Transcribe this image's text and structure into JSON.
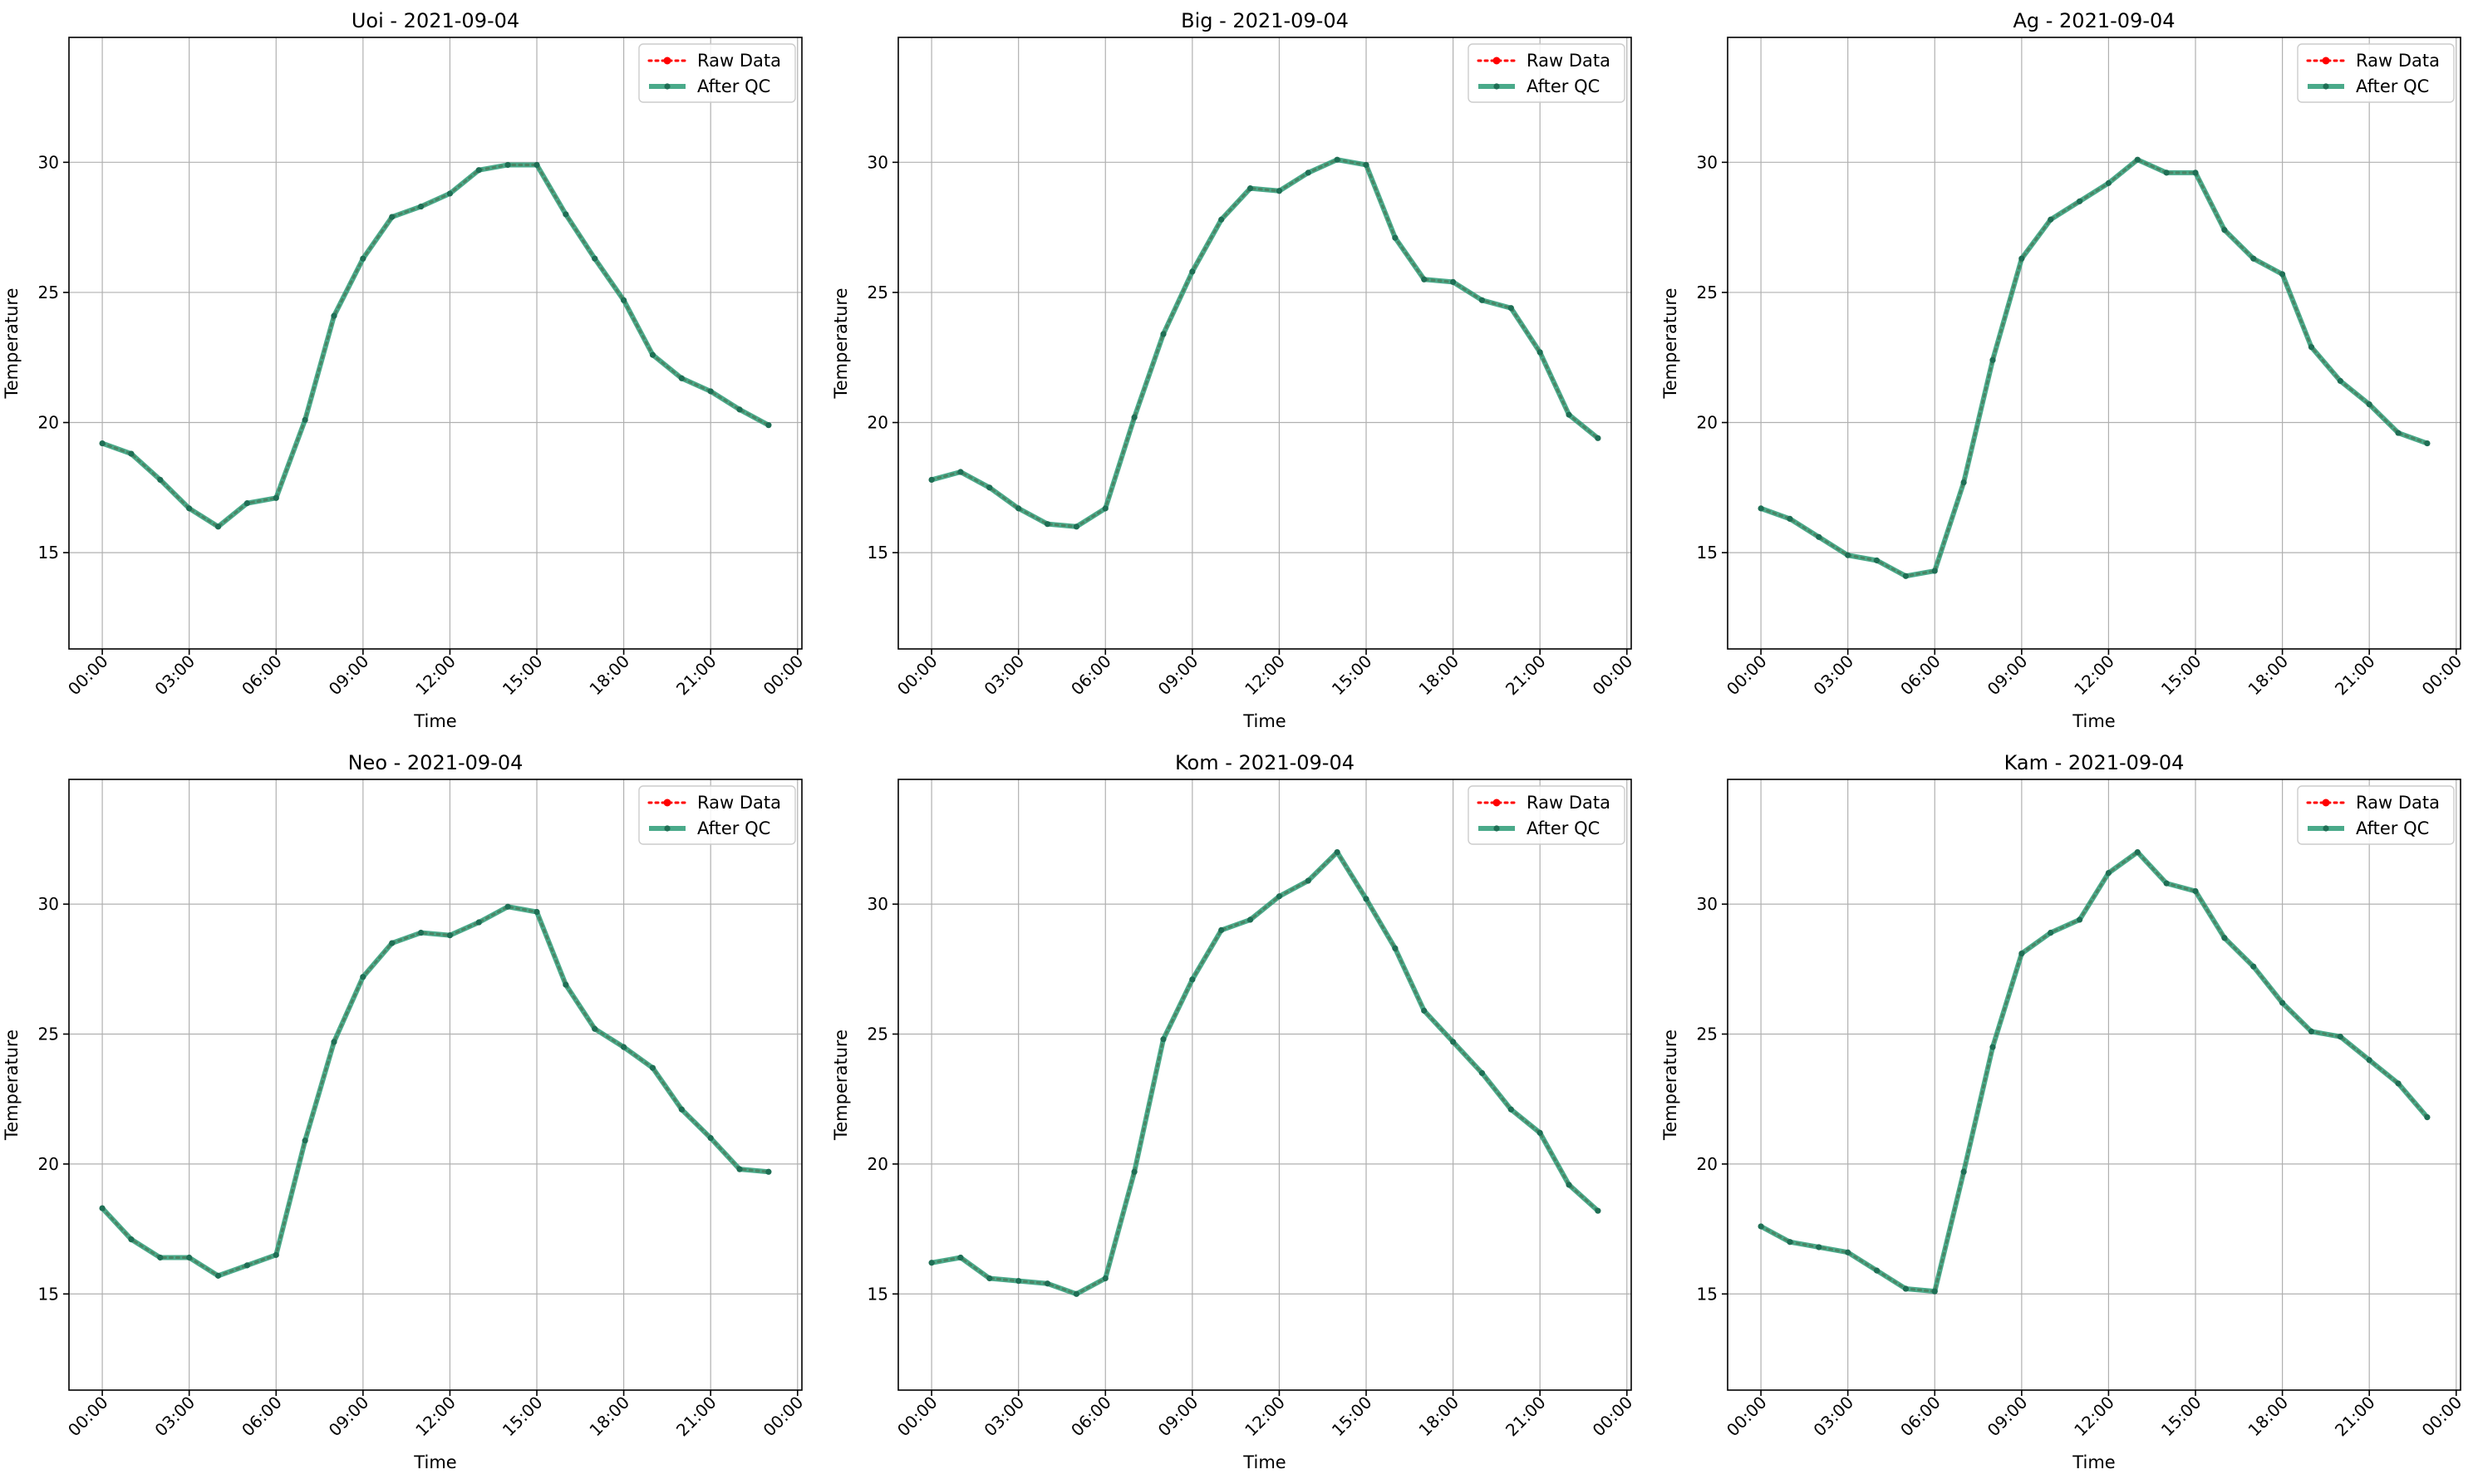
{
  "colors": {
    "raw": "#ff0000",
    "qc": "#2a9b75",
    "qc_marker": "#1f6f55",
    "grid": "#b0b0b0",
    "axes": "#000000"
  },
  "chart_data": [
    {
      "type": "line",
      "title": "Uoi - 2021-09-04",
      "xlabel": "Time",
      "ylabel": "Temperature",
      "x": [
        "00:00",
        "01:00",
        "02:00",
        "03:00",
        "04:00",
        "05:00",
        "06:00",
        "07:00",
        "08:00",
        "09:00",
        "10:00",
        "11:00",
        "12:00",
        "13:00",
        "14:00",
        "15:00",
        "16:00",
        "17:00",
        "18:00",
        "19:00",
        "20:00",
        "21:00",
        "22:00",
        "23:00"
      ],
      "xticks": [
        "00:00",
        "03:00",
        "06:00",
        "09:00",
        "12:00",
        "15:00",
        "18:00",
        "21:00",
        "00:00"
      ],
      "ylim": [
        11.3,
        34.8
      ],
      "yticks": [
        15,
        20,
        25,
        30
      ],
      "grid": true,
      "legend": "top-right",
      "series": [
        {
          "name": "Raw Data",
          "style": "dotted",
          "values": [
            19.2,
            18.8,
            17.8,
            16.7,
            16.0,
            16.9,
            17.1,
            20.1,
            24.1,
            26.3,
            27.9,
            28.3,
            28.8,
            29.7,
            29.9,
            29.9,
            28.0,
            26.3,
            24.7,
            22.6,
            21.7,
            21.2,
            20.5,
            19.9
          ]
        },
        {
          "name": "After QC",
          "style": "solid",
          "values": [
            19.2,
            18.8,
            17.8,
            16.7,
            16.0,
            16.9,
            17.1,
            20.1,
            24.1,
            26.3,
            27.9,
            28.3,
            28.8,
            29.7,
            29.9,
            29.9,
            28.0,
            26.3,
            24.7,
            22.6,
            21.7,
            21.2,
            20.5,
            19.9
          ]
        }
      ]
    },
    {
      "type": "line",
      "title": "Big - 2021-09-04",
      "xlabel": "Time",
      "ylabel": "Temperature",
      "x": [
        "00:00",
        "01:00",
        "02:00",
        "03:00",
        "04:00",
        "05:00",
        "06:00",
        "07:00",
        "08:00",
        "09:00",
        "10:00",
        "11:00",
        "12:00",
        "13:00",
        "14:00",
        "15:00",
        "16:00",
        "17:00",
        "18:00",
        "19:00",
        "20:00",
        "21:00",
        "22:00",
        "23:00"
      ],
      "xticks": [
        "00:00",
        "03:00",
        "06:00",
        "09:00",
        "12:00",
        "15:00",
        "18:00",
        "21:00",
        "00:00"
      ],
      "ylim": [
        11.3,
        34.8
      ],
      "yticks": [
        15,
        20,
        25,
        30
      ],
      "grid": true,
      "legend": "top-right",
      "series": [
        {
          "name": "Raw Data",
          "style": "dotted",
          "values": [
            17.8,
            18.1,
            17.5,
            16.7,
            16.1,
            16.0,
            16.7,
            20.2,
            23.4,
            25.8,
            27.8,
            29.0,
            28.9,
            29.6,
            30.1,
            29.9,
            27.1,
            25.5,
            25.4,
            24.7,
            24.4,
            22.7,
            20.3,
            19.4
          ]
        },
        {
          "name": "After QC",
          "style": "solid",
          "values": [
            17.8,
            18.1,
            17.5,
            16.7,
            16.1,
            16.0,
            16.7,
            20.2,
            23.4,
            25.8,
            27.8,
            29.0,
            28.9,
            29.6,
            30.1,
            29.9,
            27.1,
            25.5,
            25.4,
            24.7,
            24.4,
            22.7,
            20.3,
            19.4
          ]
        }
      ]
    },
    {
      "type": "line",
      "title": "Ag - 2021-09-04",
      "xlabel": "Time",
      "ylabel": "Temperature",
      "x": [
        "00:00",
        "01:00",
        "02:00",
        "03:00",
        "04:00",
        "05:00",
        "06:00",
        "07:00",
        "08:00",
        "09:00",
        "10:00",
        "11:00",
        "12:00",
        "13:00",
        "14:00",
        "15:00",
        "16:00",
        "17:00",
        "18:00",
        "19:00",
        "20:00",
        "21:00",
        "22:00",
        "23:00"
      ],
      "xticks": [
        "00:00",
        "03:00",
        "06:00",
        "09:00",
        "12:00",
        "15:00",
        "18:00",
        "21:00",
        "00:00"
      ],
      "ylim": [
        11.3,
        34.8
      ],
      "yticks": [
        15,
        20,
        25,
        30
      ],
      "grid": true,
      "legend": "top-right",
      "series": [
        {
          "name": "Raw Data",
          "style": "dotted",
          "values": [
            16.7,
            16.3,
            15.6,
            14.9,
            14.7,
            14.1,
            14.3,
            17.7,
            22.4,
            26.3,
            27.8,
            28.5,
            29.2,
            30.1,
            29.6,
            29.6,
            27.4,
            26.3,
            25.7,
            22.9,
            21.6,
            20.7,
            19.6,
            19.2
          ]
        },
        {
          "name": "After QC",
          "style": "solid",
          "values": [
            16.7,
            16.3,
            15.6,
            14.9,
            14.7,
            14.1,
            14.3,
            17.7,
            22.4,
            26.3,
            27.8,
            28.5,
            29.2,
            30.1,
            29.6,
            29.6,
            27.4,
            26.3,
            25.7,
            22.9,
            21.6,
            20.7,
            19.6,
            19.2
          ]
        }
      ]
    },
    {
      "type": "line",
      "title": "Neo - 2021-09-04",
      "xlabel": "Time",
      "ylabel": "Temperature",
      "x": [
        "00:00",
        "01:00",
        "02:00",
        "03:00",
        "04:00",
        "05:00",
        "06:00",
        "07:00",
        "08:00",
        "09:00",
        "10:00",
        "11:00",
        "12:00",
        "13:00",
        "14:00",
        "15:00",
        "16:00",
        "17:00",
        "18:00",
        "19:00",
        "20:00",
        "21:00",
        "22:00",
        "23:00"
      ],
      "xticks": [
        "00:00",
        "03:00",
        "06:00",
        "09:00",
        "12:00",
        "15:00",
        "18:00",
        "21:00",
        "00:00"
      ],
      "ylim": [
        11.3,
        34.8
      ],
      "yticks": [
        15,
        20,
        25,
        30
      ],
      "grid": true,
      "legend": "top-right",
      "series": [
        {
          "name": "Raw Data",
          "style": "dotted",
          "values": [
            18.3,
            17.1,
            16.4,
            16.4,
            15.7,
            16.1,
            16.5,
            20.9,
            24.7,
            27.2,
            28.5,
            28.9,
            28.8,
            29.3,
            29.9,
            29.7,
            26.9,
            25.2,
            24.5,
            23.7,
            22.1,
            21.0,
            19.8,
            19.7
          ]
        },
        {
          "name": "After QC",
          "style": "solid",
          "values": [
            18.3,
            17.1,
            16.4,
            16.4,
            15.7,
            16.1,
            16.5,
            20.9,
            24.7,
            27.2,
            28.5,
            28.9,
            28.8,
            29.3,
            29.9,
            29.7,
            26.9,
            25.2,
            24.5,
            23.7,
            22.1,
            21.0,
            19.8,
            19.7
          ]
        }
      ]
    },
    {
      "type": "line",
      "title": "Kom - 2021-09-04",
      "xlabel": "Time",
      "ylabel": "Temperature",
      "x": [
        "00:00",
        "01:00",
        "02:00",
        "03:00",
        "04:00",
        "05:00",
        "06:00",
        "07:00",
        "08:00",
        "09:00",
        "10:00",
        "11:00",
        "12:00",
        "13:00",
        "14:00",
        "15:00",
        "16:00",
        "17:00",
        "18:00",
        "19:00",
        "20:00",
        "21:00",
        "22:00",
        "23:00"
      ],
      "xticks": [
        "00:00",
        "03:00",
        "06:00",
        "09:00",
        "12:00",
        "15:00",
        "18:00",
        "21:00",
        "00:00"
      ],
      "ylim": [
        11.3,
        34.8
      ],
      "yticks": [
        15,
        20,
        25,
        30
      ],
      "grid": true,
      "legend": "top-right",
      "series": [
        {
          "name": "Raw Data",
          "style": "dotted",
          "values": [
            16.2,
            16.4,
            15.6,
            15.5,
            15.4,
            15.0,
            15.6,
            19.7,
            24.8,
            27.1,
            29.0,
            29.4,
            30.3,
            30.9,
            32.0,
            30.2,
            28.3,
            25.9,
            24.7,
            23.5,
            22.1,
            21.2,
            19.2,
            18.2
          ]
        },
        {
          "name": "After QC",
          "style": "solid",
          "values": [
            16.2,
            16.4,
            15.6,
            15.5,
            15.4,
            15.0,
            15.6,
            19.7,
            24.8,
            27.1,
            29.0,
            29.4,
            30.3,
            30.9,
            32.0,
            30.2,
            28.3,
            25.9,
            24.7,
            23.5,
            22.1,
            21.2,
            19.2,
            18.2
          ]
        }
      ]
    },
    {
      "type": "line",
      "title": "Kam - 2021-09-04",
      "xlabel": "Time",
      "ylabel": "Temperature",
      "x": [
        "00:00",
        "01:00",
        "02:00",
        "03:00",
        "04:00",
        "05:00",
        "06:00",
        "07:00",
        "08:00",
        "09:00",
        "10:00",
        "11:00",
        "12:00",
        "13:00",
        "14:00",
        "15:00",
        "16:00",
        "17:00",
        "18:00",
        "19:00",
        "20:00",
        "21:00",
        "22:00",
        "23:00"
      ],
      "xticks": [
        "00:00",
        "03:00",
        "06:00",
        "09:00",
        "12:00",
        "15:00",
        "18:00",
        "21:00",
        "00:00"
      ],
      "ylim": [
        11.3,
        34.8
      ],
      "yticks": [
        15,
        20,
        25,
        30
      ],
      "grid": true,
      "legend": "top-right",
      "series": [
        {
          "name": "Raw Data",
          "style": "dotted",
          "values": [
            17.6,
            17.0,
            16.8,
            16.6,
            15.9,
            15.2,
            15.1,
            19.7,
            24.5,
            28.1,
            28.9,
            29.4,
            31.2,
            32.0,
            30.8,
            30.5,
            28.7,
            27.6,
            26.2,
            25.1,
            24.9,
            24.0,
            23.1,
            21.8
          ]
        },
        {
          "name": "After QC",
          "style": "solid",
          "values": [
            17.6,
            17.0,
            16.8,
            16.6,
            15.9,
            15.2,
            15.1,
            19.7,
            24.5,
            28.1,
            28.9,
            29.4,
            31.2,
            32.0,
            30.8,
            30.5,
            28.7,
            27.6,
            26.2,
            25.1,
            24.9,
            24.0,
            23.1,
            21.8
          ]
        }
      ]
    }
  ]
}
